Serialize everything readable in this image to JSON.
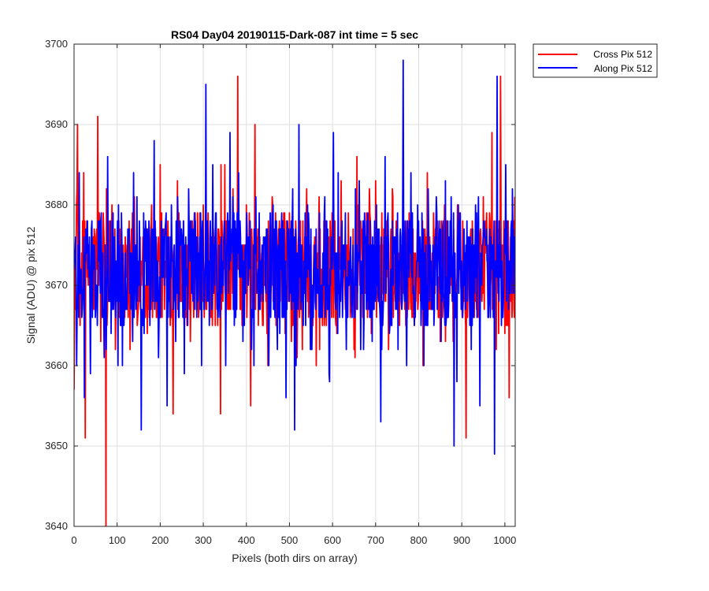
{
  "chart_data": {
    "type": "line",
    "title": "RS04 Day04 20190115-Dark-087 int time = 5 sec",
    "xlabel": "Pixels (both dirs on array)",
    "ylabel": "Signal (ADU) @ pix 512",
    "xlim": [
      0,
      1024
    ],
    "ylim": [
      3640,
      3700
    ],
    "x_ticks": [
      "0",
      "100",
      "200",
      "300",
      "400",
      "500",
      "600",
      "700",
      "800",
      "900",
      "1000"
    ],
    "y_ticks": [
      "3640",
      "3650",
      "3660",
      "3670",
      "3680",
      "3690",
      "3700"
    ],
    "grid": true,
    "legend_position": "top-right outside",
    "series": [
      {
        "name": "Cross Pix 512",
        "color": "#ff0000",
        "x": [
          0,
          8,
          14,
          20,
          26,
          32,
          40,
          48,
          55,
          62,
          70,
          74,
          80,
          88,
          96,
          104,
          112,
          120,
          130,
          140,
          150,
          160,
          170,
          180,
          190,
          200,
          210,
          220,
          230,
          240,
          250,
          260,
          270,
          280,
          290,
          300,
          310,
          320,
          330,
          340,
          350,
          360,
          370,
          380,
          390,
          400,
          410,
          420,
          430,
          440,
          450,
          460,
          470,
          480,
          490,
          500,
          510,
          520,
          530,
          540,
          550,
          560,
          570,
          580,
          590,
          600,
          610,
          620,
          630,
          640,
          650,
          660,
          670,
          680,
          690,
          700,
          710,
          720,
          730,
          740,
          750,
          760,
          770,
          780,
          790,
          800,
          810,
          820,
          830,
          840,
          850,
          860,
          870,
          880,
          890,
          900,
          910,
          920,
          930,
          940,
          950,
          960,
          970,
          980,
          990,
          1000,
          1010,
          1023
        ],
        "y": [
          3657,
          3690,
          3665,
          3678,
          3651,
          3672,
          3668,
          3676,
          3691,
          3663,
          3675,
          3640,
          3672,
          3680,
          3662,
          3678,
          3666,
          3674,
          3662,
          3681,
          3668,
          3676,
          3664,
          3680,
          3670,
          3685,
          3667,
          3676,
          3654,
          3683,
          3668,
          3675,
          3663,
          3679,
          3667,
          3680,
          3673,
          3669,
          3676,
          3654,
          3685,
          3667,
          3676,
          3696,
          3665,
          3680,
          3655,
          3690,
          3668,
          3675,
          3660,
          3681,
          3670,
          3676,
          3664,
          3679,
          3668,
          3675,
          3662,
          3682,
          3669,
          3676,
          3662,
          3678,
          3669,
          3675,
          3664,
          3683,
          3667,
          3674,
          3662,
          3680,
          3666,
          3678,
          3664,
          3683,
          3668,
          3676,
          3662,
          3681,
          3669,
          3674,
          3665,
          3678,
          3665,
          3676,
          3660,
          3684,
          3667,
          3675,
          3663,
          3680,
          3670,
          3663,
          3680,
          3668,
          3651,
          3676,
          3670,
          3667,
          3681,
          3670,
          3689,
          3662,
          3696,
          3664,
          3656,
          3681
        ]
      },
      {
        "name": "Along Pix 512",
        "color": "#0000ff",
        "x": [
          0,
          6,
          12,
          18,
          24,
          30,
          38,
          46,
          54,
          62,
          70,
          78,
          86,
          94,
          102,
          110,
          118,
          126,
          136,
          146,
          156,
          166,
          176,
          186,
          196,
          206,
          216,
          226,
          236,
          246,
          256,
          266,
          276,
          286,
          296,
          306,
          314,
          322,
          332,
          342,
          352,
          362,
          372,
          382,
          392,
          402,
          412,
          422,
          432,
          442,
          452,
          462,
          472,
          482,
          492,
          502,
          512,
          522,
          532,
          542,
          552,
          562,
          572,
          582,
          592,
          602,
          612,
          622,
          632,
          642,
          652,
          662,
          672,
          682,
          692,
          702,
          712,
          722,
          732,
          742,
          752,
          764,
          772,
          782,
          792,
          802,
          812,
          822,
          832,
          842,
          852,
          862,
          872,
          882,
          892,
          902,
          912,
          922,
          932,
          942,
          952,
          962,
          972,
          976,
          982,
          992,
          1002,
          1012,
          1023
        ],
        "y": [
          3672,
          3660,
          3684,
          3666,
          3656,
          3676,
          3659,
          3672,
          3665,
          3678,
          3661,
          3686,
          3664,
          3676,
          3660,
          3679,
          3667,
          3677,
          3663,
          3681,
          3652,
          3678,
          3665,
          3688,
          3661,
          3677,
          3655,
          3680,
          3663,
          3678,
          3659,
          3682,
          3668,
          3676,
          3660,
          3695,
          3665,
          3685,
          3667,
          3676,
          3660,
          3689,
          3665,
          3684,
          3663,
          3676,
          3662,
          3681,
          3667,
          3675,
          3660,
          3680,
          3662,
          3679,
          3656,
          3677,
          3652,
          3690,
          3665,
          3680,
          3662,
          3677,
          3666,
          3681,
          3659,
          3689,
          3664,
          3678,
          3662,
          3676,
          3666,
          3683,
          3662,
          3679,
          3663,
          3680,
          3653,
          3686,
          3664,
          3676,
          3662,
          3698,
          3660,
          3684,
          3666,
          3675,
          3660,
          3682,
          3667,
          3679,
          3663,
          3683,
          3669,
          3650,
          3680,
          3666,
          3678,
          3662,
          3680,
          3655,
          3678,
          3666,
          3675,
          3649,
          3696,
          3665,
          3685,
          3669,
          3676
        ]
      }
    ]
  }
}
